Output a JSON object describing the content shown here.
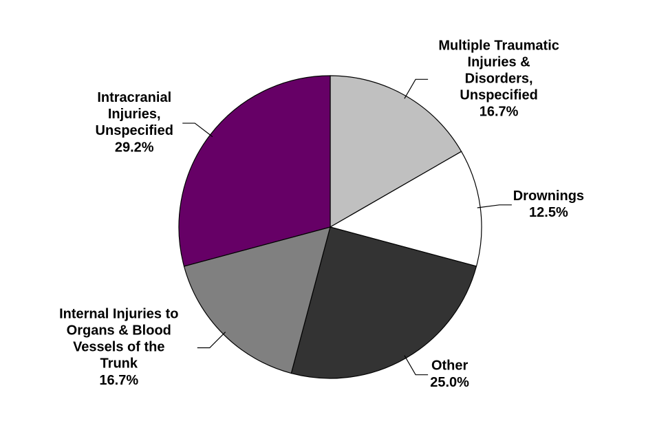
{
  "chart_data": {
    "type": "pie",
    "categories": [
      "Multiple Traumatic\nInjuries &\nDisorders,\nUnspecified",
      "Drownings",
      "Other",
      "Internal Injuries to\nOrgans & Blood\nVessels of the\nTrunk",
      "Intracranial\nInjuries,\nUnspecified"
    ],
    "values": [
      16.7,
      12.5,
      25.0,
      16.7,
      29.2
    ],
    "value_labels": [
      "16.7%",
      "12.5%",
      "25.0%",
      "16.7%",
      "29.2%"
    ],
    "colors": [
      "#c0c0c0",
      "#ffffff",
      "#333333",
      "#808080",
      "#660066"
    ]
  }
}
